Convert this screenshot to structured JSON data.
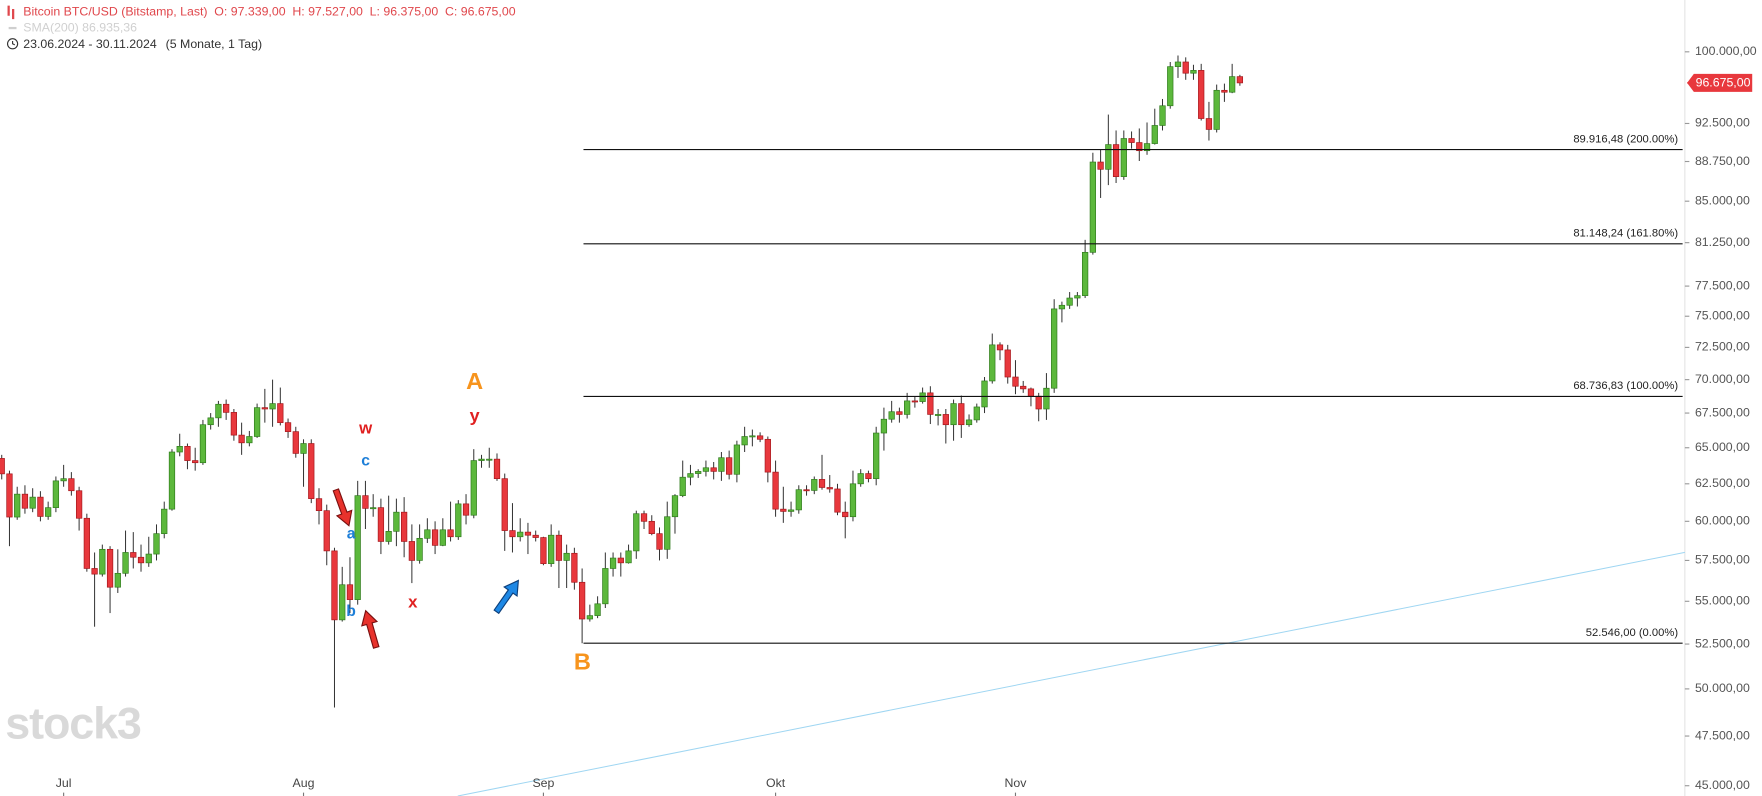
{
  "chart_data": {
    "type": "candlestick",
    "title": "Bitcoin BTC/USD (Bitstamp, Last)",
    "ohlc_labels": [
      "O: 97.339,00",
      "H: 97.527,00",
      "L: 96.375,00",
      "C: 96.675,00"
    ],
    "sma_legend": "SMA(200)  86.935,36",
    "date_range": "23.06.2024 - 30.11.2024",
    "period": "(5 Monate, 1 Tag)",
    "price_label": "96.675,00",
    "watermark": "stock3",
    "log_scale": true,
    "up_color": "#5cb83c",
    "down_color": "#e8383d",
    "ylim": [
      44500,
      105800
    ],
    "yticks": [
      {
        "value": 100000,
        "label": "100.000,00"
      },
      {
        "value": 92500,
        "label": "92.500,00"
      },
      {
        "value": 88750,
        "label": "88.750,00"
      },
      {
        "value": 85000,
        "label": "85.000,00"
      },
      {
        "value": 81250,
        "label": "81.250,00"
      },
      {
        "value": 77500,
        "label": "77.500,00"
      },
      {
        "value": 75000,
        "label": "75.000,00"
      },
      {
        "value": 72500,
        "label": "72.500,00"
      },
      {
        "value": 70000,
        "label": "70.000,00"
      },
      {
        "value": 67500,
        "label": "67.500,00"
      },
      {
        "value": 65000,
        "label": "65.000,00"
      },
      {
        "value": 62500,
        "label": "62.500,00"
      },
      {
        "value": 60000,
        "label": "60.000,00"
      },
      {
        "value": 57500,
        "label": "57.500,00"
      },
      {
        "value": 55000,
        "label": "55.000,00"
      },
      {
        "value": 52500,
        "label": "52.500,00"
      },
      {
        "value": 50000,
        "label": "50.000,00"
      },
      {
        "value": 47500,
        "label": "47.500,00"
      },
      {
        "value": 45000,
        "label": "45.000,00"
      }
    ],
    "xlim": [
      -0.12,
      217.5
    ],
    "xticks": [
      {
        "value": 8,
        "label": "Jul"
      },
      {
        "value": 39,
        "label": "Aug"
      },
      {
        "value": 70,
        "label": "Sep"
      },
      {
        "value": 100,
        "label": "Okt"
      },
      {
        "value": 131,
        "label": "Nov"
      }
    ],
    "fib_levels": [
      {
        "value": 89916.48,
        "label": "89.916,48 (200.00%)"
      },
      {
        "value": 81148.24,
        "label": "81.148,24 (161.80%)"
      },
      {
        "value": 68736.83,
        "label": "68.736,83 (100.00%)"
      },
      {
        "value": 52546.0,
        "label": "52.546,00 (0.00%)"
      }
    ],
    "annotations": [
      {
        "text": "A",
        "color": "#f7941d"
      },
      {
        "text": "y",
        "color": "#e02020"
      },
      {
        "text": "w",
        "color": "#e02020"
      },
      {
        "text": "c",
        "color": "#1e7fd8"
      },
      {
        "text": "a",
        "color": "#1e7fd8"
      },
      {
        "text": "b",
        "color": "#1e7fd8"
      },
      {
        "text": "x",
        "color": "#e02020"
      },
      {
        "text": "B",
        "color": "#f7941d"
      }
    ],
    "open": [
      64250,
      63180,
      60280,
      61800,
      60860,
      61600,
      60320,
      60900,
      62700,
      62850,
      62030,
      60200,
      57000,
      56650,
      58200,
      55850,
      56700,
      58000,
      57700,
      57350,
      57900,
      59200,
      60800,
      64700,
      65100,
      64100,
      63950,
      66650,
      67150,
      68150,
      67550,
      65900,
      65350,
      65800,
      67900,
      67800,
      68200,
      66800,
      66150,
      64600,
      65300,
      61500,
      60700,
      58100,
      53900,
      56000,
      55100,
      61700,
      60850,
      60900,
      58700,
      59350,
      60600,
      58700,
      57500,
      58900,
      59450,
      58450,
      59450,
      59000,
      61150,
      60400,
      64100,
      64200,
      64200,
      62850,
      59400,
      59000,
      59300,
      59100,
      58950,
      57300,
      59100,
      57500,
      57950,
      56150,
      53950,
      54150,
      54850,
      57000,
      57650,
      57350,
      58100,
      60500,
      60000,
      59200,
      58200,
      60300,
      61700,
      62950,
      63200,
      63350,
      63600,
      63350,
      64300,
      63150,
      65200,
      65800,
      65850,
      65600,
      63300,
      60800,
      60650,
      60750,
      62100,
      62050,
      62800,
      62250,
      62150,
      60600,
      60300,
      62500,
      63200,
      62850,
      66050,
      67050,
      67600,
      67400,
      68400,
      68350,
      69000,
      67400,
      67400,
      66650,
      68200,
      66650,
      67000,
      67950,
      69900,
      72700,
      72300,
      70200,
      69500,
      69300,
      68750,
      67800,
      69350,
      75600,
      75900,
      76500,
      76700,
      80400,
      88700,
      88000,
      90400,
      87300,
      91000,
      90600,
      89800,
      90500,
      92300,
      94300,
      98400,
      98900,
      97700,
      98000,
      93000,
      91900,
      95900,
      95700,
      97339
    ],
    "high": [
      64500,
      63400,
      62300,
      62400,
      62200,
      62000,
      61300,
      63000,
      63800,
      63300,
      62300,
      60500,
      58000,
      58500,
      58400,
      58200,
      59400,
      59300,
      58500,
      59000,
      59800,
      61300,
      64900,
      66000,
      65300,
      65000,
      67000,
      67500,
      68400,
      68500,
      67800,
      66800,
      66200,
      68200,
      69300,
      70000,
      69400,
      67100,
      66500,
      65600,
      65600,
      62200,
      61100,
      58300,
      57100,
      57700,
      62700,
      62700,
      61800,
      61500,
      61700,
      61500,
      61600,
      59800,
      59800,
      60200,
      60000,
      60200,
      61300,
      61400,
      61800,
      64900,
      64500,
      65000,
      64600,
      63200,
      61200,
      60200,
      59900,
      59400,
      59000,
      59800,
      59400,
      58500,
      58300,
      57000,
      54800,
      55300,
      58000,
      58000,
      58000,
      58500,
      60700,
      60700,
      60400,
      59600,
      61300,
      61800,
      64100,
      63800,
      63500,
      64100,
      64000,
      64700,
      64800,
      65500,
      66500,
      66300,
      66100,
      65800,
      64100,
      62300,
      61300,
      62400,
      62400,
      63000,
      64500,
      63100,
      62500,
      61300,
      63400,
      63500,
      63400,
      66500,
      67900,
      68400,
      67900,
      69000,
      68700,
      69400,
      69500,
      67800,
      67800,
      68500,
      68800,
      67400,
      68200,
      70200,
      73600,
      72900,
      72700,
      71500,
      69900,
      69400,
      69000,
      70500,
      76400,
      76200,
      77000,
      77000,
      81500,
      89600,
      89900,
      93400,
      91800,
      91800,
      91700,
      92000,
      92600,
      94000,
      95000,
      98900,
      99600,
      99400,
      98600,
      98700,
      94700,
      96500,
      96600,
      98700,
      97527
    ],
    "low": [
      62800,
      58400,
      60100,
      60500,
      60600,
      60000,
      60100,
      60600,
      62300,
      61700,
      59400,
      56800,
      53500,
      56500,
      54300,
      55500,
      56500,
      57000,
      56800,
      57100,
      57500,
      58900,
      60700,
      64400,
      63500,
      63400,
      63800,
      66300,
      66500,
      67000,
      65500,
      64500,
      65100,
      65700,
      66800,
      66500,
      66600,
      65700,
      64300,
      62300,
      61200,
      59800,
      57200,
      49000,
      53800,
      54300,
      54800,
      59500,
      60300,
      57900,
      58500,
      58400,
      57700,
      56100,
      57300,
      58600,
      57900,
      58400,
      58700,
      58800,
      59800,
      60200,
      63600,
      63600,
      62700,
      58100,
      58000,
      58700,
      57900,
      58700,
      57200,
      57100,
      55800,
      55800,
      55700,
      52546,
      53800,
      54000,
      54600,
      56500,
      56500,
      57300,
      57600,
      59500,
      59100,
      57500,
      57600,
      59200,
      61600,
      62400,
      62900,
      63000,
      62800,
      62700,
      62800,
      62600,
      64700,
      65100,
      65400,
      62600,
      60300,
      59900,
      60300,
      60500,
      61700,
      61800,
      62100,
      61900,
      60400,
      58900,
      60000,
      62300,
      62600,
      62400,
      64800,
      66800,
      66800,
      67100,
      67900,
      68200,
      66700,
      66600,
      65300,
      65500,
      65700,
      66500,
      66800,
      67500,
      69700,
      71500,
      69700,
      68900,
      69000,
      68000,
      66900,
      67000,
      69000,
      74500,
      75600,
      75800,
      76500,
      80200,
      85300,
      86500,
      86700,
      87000,
      90000,
      88800,
      89400,
      90400,
      91800,
      94000,
      97200,
      97000,
      97000,
      92800,
      90800,
      91600,
      94700,
      95600,
      96375
    ],
    "close": [
      63180,
      60280,
      61800,
      60860,
      61600,
      60320,
      60900,
      62700,
      62850,
      62030,
      60200,
      57000,
      56650,
      58200,
      55850,
      56700,
      58000,
      57700,
      57350,
      57900,
      59200,
      60800,
      64700,
      65100,
      64100,
      63950,
      66650,
      67150,
      68150,
      67550,
      65900,
      65350,
      65800,
      67900,
      67800,
      68200,
      66800,
      66150,
      64600,
      65300,
      61500,
      60700,
      58100,
      53900,
      56000,
      55100,
      61700,
      60850,
      60900,
      58700,
      59350,
      60600,
      58700,
      57500,
      58900,
      59450,
      58450,
      59450,
      59000,
      61150,
      60400,
      64100,
      64200,
      64200,
      62850,
      59400,
      59000,
      59300,
      59100,
      58950,
      57300,
      59100,
      57500,
      57950,
      56150,
      53950,
      54150,
      54850,
      57000,
      57650,
      57350,
      58100,
      60500,
      60000,
      59200,
      58200,
      60300,
      61700,
      62950,
      63200,
      63350,
      63600,
      63350,
      64300,
      63150,
      65200,
      65800,
      65850,
      65600,
      63300,
      60800,
      60650,
      60750,
      62100,
      62050,
      62800,
      62250,
      62150,
      60600,
      60300,
      62500,
      63200,
      62850,
      66050,
      67050,
      67600,
      67400,
      68400,
      68350,
      69000,
      67400,
      67400,
      66650,
      68200,
      66650,
      67000,
      67950,
      69900,
      72700,
      72300,
      70200,
      69500,
      69300,
      68750,
      67800,
      69350,
      75600,
      75900,
      76500,
      76700,
      80400,
      88700,
      88000,
      90400,
      87300,
      91000,
      90600,
      89800,
      90500,
      92300,
      94300,
      98400,
      98900,
      97700,
      98000,
      93000,
      91900,
      95900,
      95700,
      97339,
      96675
    ]
  }
}
